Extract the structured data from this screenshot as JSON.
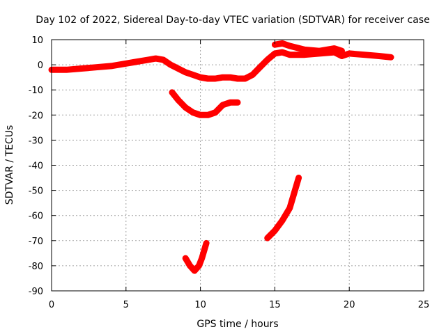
{
  "chart_data": {
    "type": "line",
    "title": "Day 102 of 2022, Sidereal Day-to-day VTEC variation (SDTVAR) for receiver case",
    "xlabel": "GPS time / hours",
    "ylabel": "SDTVAR / TECUs",
    "xlim": [
      0,
      25
    ],
    "ylim": [
      -90,
      10
    ],
    "xticks": [
      0,
      5,
      10,
      15,
      20,
      25
    ],
    "yticks": [
      10,
      0,
      -10,
      -20,
      -30,
      -40,
      -50,
      -60,
      -70,
      -80,
      -90
    ],
    "grid": true,
    "legend": "none",
    "series": [
      {
        "name": "main",
        "color": "#ff0000",
        "x": [
          0,
          0.5,
          1,
          2,
          3,
          4,
          5,
          5.5,
          6,
          6.5,
          7,
          7.5,
          8,
          8.5,
          9,
          9.5,
          10,
          10.5,
          11,
          11.5,
          12,
          12.5,
          13,
          13.5,
          14,
          14.5,
          15,
          15.5,
          16,
          17,
          18,
          19,
          19.5,
          20,
          21,
          22,
          22.8
        ],
        "y": [
          -2,
          -2,
          -2,
          -1.5,
          -1,
          -0.5,
          0.5,
          1,
          1.5,
          2,
          2.5,
          2,
          0,
          -1.5,
          -3,
          -4,
          -5,
          -5.5,
          -5.5,
          -5,
          -5,
          -5.5,
          -5.5,
          -4,
          -1,
          2,
          4.5,
          5,
          4,
          4,
          4.5,
          5,
          3.5,
          4.5,
          4,
          3.5,
          3
        ]
      },
      {
        "name": "upper-branch",
        "color": "#ff0000",
        "x": [
          15,
          15.5,
          16,
          17,
          18,
          19,
          19.5
        ],
        "y": [
          8,
          8.5,
          7.5,
          6,
          5.5,
          6.5,
          5.5
        ]
      },
      {
        "name": "arc",
        "color": "#ff0000",
        "x": [
          8.1,
          8.5,
          9,
          9.5,
          10,
          10.5,
          11,
          11.5,
          12,
          12.5
        ],
        "y": [
          -11,
          -14,
          -17,
          -19,
          -20,
          -20,
          -19,
          -16,
          -15,
          -15
        ]
      },
      {
        "name": "rising-segment",
        "color": "#ff0000",
        "x": [
          14.5,
          15,
          15.5,
          16,
          16.3,
          16.6
        ],
        "y": [
          -69,
          -66,
          -62,
          -57,
          -51,
          -45
        ]
      },
      {
        "name": "hook",
        "color": "#ff0000",
        "x": [
          9,
          9.3,
          9.6,
          9.9,
          10.1,
          10.4
        ],
        "y": [
          -77,
          -80,
          -82,
          -80,
          -77,
          -71
        ]
      }
    ]
  }
}
